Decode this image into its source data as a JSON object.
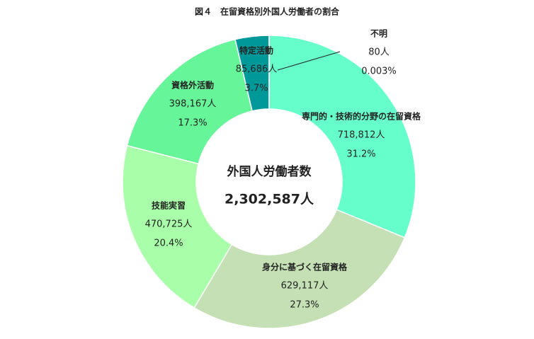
{
  "chart_data": {
    "type": "donut",
    "title": "図４　在留資格別外国人労働者の割合",
    "center_title": "外国人労働者数",
    "center_value": "2,302,587人",
    "categories": [
      "専門的・技術的分野の在留資格",
      "身分に基づく在留資格",
      "技能実習",
      "資格外活動",
      "特定活動",
      "不明"
    ],
    "values": [
      718812,
      629117,
      470725,
      398167,
      85686,
      80
    ],
    "value_labels": [
      "718,812人",
      "629,117人",
      "470,725人",
      "398,167人",
      "85,686人",
      "80人"
    ],
    "percent_labels": [
      "31.2%",
      "27.3%",
      "20.4%",
      "17.3%",
      "3.7%",
      "0.003%"
    ],
    "colors": [
      "#66FFCC",
      "#C5E0B4",
      "#A9FFA9",
      "#66F599",
      "#009999",
      "#00B0B0"
    ]
  }
}
